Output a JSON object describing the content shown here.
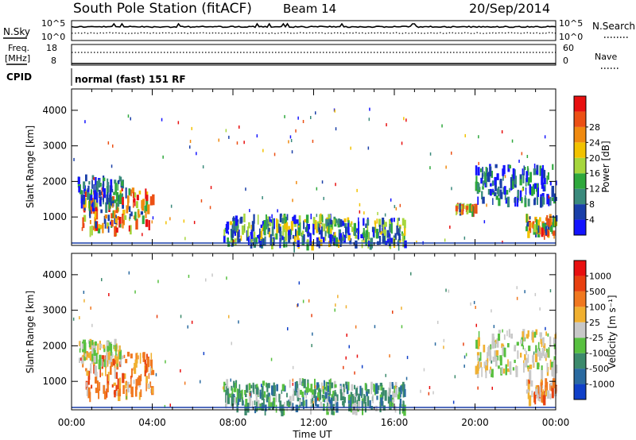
{
  "header": {
    "station": "South Pole Station (fitACF)",
    "beam": "Beam 14",
    "date": "20/Sep/2014"
  },
  "top_panels": {
    "nsky_label": "N.Sky",
    "nsearch_label": "N.Search",
    "noise_ticks_left": [
      "10^5",
      "10^0"
    ],
    "noise_ticks_right": [
      "10^5",
      "10^0"
    ],
    "freq_label_1": "Freq.",
    "freq_label_2": "[MHz]",
    "freq_ticks": [
      "18",
      "8"
    ],
    "nave_label": "Nave",
    "nave_ticks": [
      "60",
      "0"
    ],
    "cpid_label": "CPID",
    "cpid_value": "normal (fast) 151 RF"
  },
  "chart_data": [
    {
      "type": "heatmap",
      "panel": "power",
      "xlabel": "",
      "ylabel": "Slant Range [km]",
      "xlim": [
        0,
        24
      ],
      "ylim": [
        200,
        4600
      ],
      "y_ticks": [
        "1000",
        "2000",
        "3000",
        "4000"
      ],
      "colorbar": {
        "label": "Power [dB]",
        "ticks": [
          "4",
          "8",
          "12",
          "16",
          "20",
          "24",
          "28"
        ],
        "colors": [
          "#1414ff",
          "#1a3fa8",
          "#3a8a7c",
          "#2ea83c",
          "#a6d63c",
          "#f2c200",
          "#f08a10",
          "#ec5014",
          "#e81010"
        ]
      },
      "echo_regions": [
        {
          "t": [
            0.5,
            4.0
          ],
          "r": [
            700,
            1900
          ],
          "level": "high"
        },
        {
          "t": [
            0.3,
            2.5
          ],
          "r": [
            1400,
            2200
          ],
          "level": "low"
        },
        {
          "t": [
            7.5,
            13.0
          ],
          "r": [
            300,
            1100
          ],
          "level": "mid"
        },
        {
          "t": [
            12.5,
            16.5
          ],
          "r": [
            300,
            1000
          ],
          "level": "mid"
        },
        {
          "t": [
            19.0,
            20.0
          ],
          "r": [
            1300,
            1400
          ],
          "level": "high"
        },
        {
          "t": [
            20.0,
            24.0
          ],
          "r": [
            1500,
            2500
          ],
          "level": "low"
        },
        {
          "t": [
            22.5,
            24.0
          ],
          "r": [
            600,
            1100
          ],
          "level": "high"
        }
      ]
    },
    {
      "type": "heatmap",
      "panel": "velocity",
      "xlabel": "Time UT",
      "ylabel": "Slant Range [km]",
      "xlim": [
        0,
        24
      ],
      "ylim": [
        200,
        4600
      ],
      "x_ticks": [
        "00:00",
        "04:00",
        "08:00",
        "12:00",
        "16:00",
        "20:00",
        "00:00"
      ],
      "y_ticks": [
        "1000",
        "2000",
        "3000",
        "4000"
      ],
      "colorbar": {
        "label": "Velocity [m s⁻¹]",
        "ticks": [
          "1000",
          "500",
          "100",
          "25",
          "-25",
          "-100",
          "-500",
          "-1000"
        ],
        "colors": [
          "#1040c8",
          "#2a6aa0",
          "#3c8a6c",
          "#58c040",
          "#c8c8c8",
          "#f0b030",
          "#f07820",
          "#e84010",
          "#e81010"
        ]
      },
      "echo_regions": [
        {
          "t": [
            0.5,
            4.0
          ],
          "r": [
            700,
            1900
          ],
          "level": "away"
        },
        {
          "t": [
            0.3,
            2.5
          ],
          "r": [
            1600,
            2200
          ],
          "level": "ground"
        },
        {
          "t": [
            7.5,
            13.0
          ],
          "r": [
            300,
            1100
          ],
          "level": "toward"
        },
        {
          "t": [
            12.5,
            16.5
          ],
          "r": [
            300,
            1000
          ],
          "level": "toward"
        },
        {
          "t": [
            20.0,
            24.0
          ],
          "r": [
            1300,
            2500
          ],
          "level": "ground"
        },
        {
          "t": [
            22.5,
            24.0
          ],
          "r": [
            600,
            1100
          ],
          "level": "away"
        }
      ]
    }
  ]
}
